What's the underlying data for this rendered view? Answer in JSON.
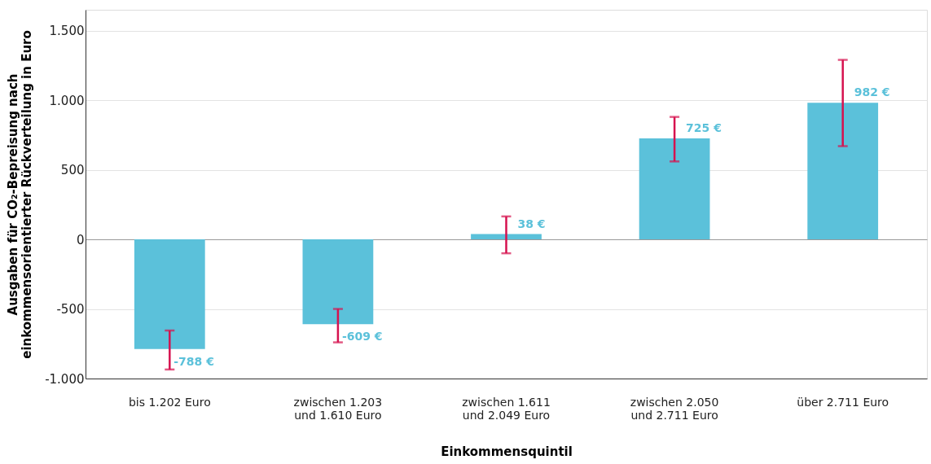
{
  "chart_data": {
    "type": "bar",
    "categories": [
      "bis 1.202 Euro",
      "zwischen 1.203\nund 1.610 Euro",
      "zwischen 1.611\nund 2.049 Euro",
      "zwischen 2.050\nund 2.711 Euro",
      "über 2.711 Euro"
    ],
    "values": [
      -788,
      -609,
      38,
      725,
      982
    ],
    "color": "#5bc1da",
    "errors": [
      [
        -935,
        -655
      ],
      [
        -740,
        -500
      ],
      [
        -100,
        165
      ],
      [
        560,
        880
      ],
      [
        670,
        1290
      ]
    ],
    "value_labels": [
      "-788 €",
      "-609 €",
      "38 €",
      "725 €",
      "982 €"
    ],
    "xlabel": "Einkommensquintil",
    "ylabel": "Ausgaben für CO₂-Bepreisung nach\neinkommensorientierter Rückverteilung in Euro",
    "ylim": [
      -1000,
      1650
    ],
    "yticks": [
      {
        "value": -1000,
        "label": "-1.000"
      },
      {
        "value": -500,
        "label": "-500"
      },
      {
        "value": 0,
        "label": "0"
      },
      {
        "value": 500,
        "label": "500"
      },
      {
        "value": 1000,
        "label": "1.000"
      },
      {
        "value": 1500,
        "label": "1.500"
      }
    ],
    "grid": "y"
  }
}
